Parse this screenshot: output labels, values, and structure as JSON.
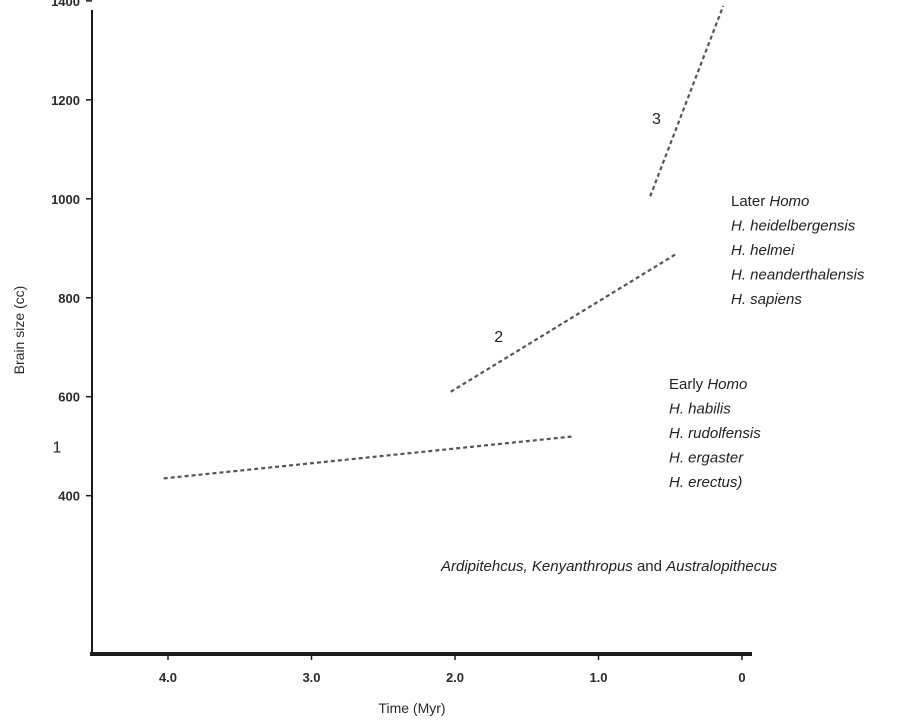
{
  "chart_data": {
    "type": "line",
    "xlabel": "Time (Myr)",
    "ylabel": "Brain size (cc)",
    "xlim": [
      4.5,
      0
    ],
    "ylim": [
      300,
      1560
    ],
    "x_ticks": [
      {
        "value": 4.0,
        "label": "4.0"
      },
      {
        "value": 3.0,
        "label": "3.0"
      },
      {
        "value": 2.0,
        "label": "2.0"
      },
      {
        "value": 1.0,
        "label": "1.0"
      },
      {
        "value": 0,
        "label": "0"
      }
    ],
    "y_ticks": [
      {
        "value": 400,
        "label": "400"
      },
      {
        "value": 600,
        "label": "600"
      },
      {
        "value": 800,
        "label": "800"
      },
      {
        "value": 1000,
        "label": "1000"
      },
      {
        "value": 1200,
        "label": "1200"
      },
      {
        "value": 1400,
        "label": "1400"
      }
    ],
    "series": [
      {
        "name": "1",
        "style": "dashed",
        "x": [
          4.03,
          1.17
        ],
        "y": [
          435,
          520
        ]
      },
      {
        "name": "2",
        "style": "dashed",
        "x": [
          2.03,
          0.45
        ],
        "y": [
          610,
          890
        ]
      },
      {
        "name": "3",
        "style": "dashed",
        "x": [
          0.64,
          0.13
        ],
        "y": [
          1005,
          1390
        ]
      }
    ],
    "annotations": [
      {
        "id": "group-1",
        "lines": [
          {
            "parts": [
              {
                "text": "Ardipitehcus",
                "italic": true
              },
              {
                "text": ", ",
                "italic": true
              },
              {
                "text": "Kenyanthropus",
                "italic": true
              },
              {
                "text": " and ",
                "italic": false
              },
              {
                "text": "Australopithecus",
                "italic": true
              }
            ]
          }
        ]
      },
      {
        "id": "group-2",
        "lines": [
          {
            "parts": [
              {
                "text": "Early ",
                "italic": false
              },
              {
                "text": "Homo",
                "italic": true
              }
            ]
          },
          {
            "parts": [
              {
                "text": "H. habilis",
                "italic": true
              }
            ]
          },
          {
            "parts": [
              {
                "text": "H. rudolfensis",
                "italic": true
              }
            ]
          },
          {
            "parts": [
              {
                "text": "H. ergaster",
                "italic": true
              }
            ]
          },
          {
            "parts": [
              {
                "text": "H. erectus)",
                "italic": true
              }
            ]
          }
        ]
      },
      {
        "id": "group-3",
        "lines": [
          {
            "parts": [
              {
                "text": "Later ",
                "italic": false
              },
              {
                "text": "Homo",
                "italic": true
              }
            ]
          },
          {
            "parts": [
              {
                "text": "H. heidelbergensis",
                "italic": true
              }
            ]
          },
          {
            "parts": [
              {
                "text": "H. helmei",
                "italic": true
              }
            ]
          },
          {
            "parts": [
              {
                "text": "H. neanderthalensis",
                "italic": true
              }
            ]
          },
          {
            "parts": [
              {
                "text": "H. sapiens",
                "italic": true
              }
            ]
          }
        ]
      }
    ],
    "grid": false,
    "colors": {
      "axis": "#1a1a1a",
      "line": "#555555",
      "text": "#222222"
    }
  }
}
